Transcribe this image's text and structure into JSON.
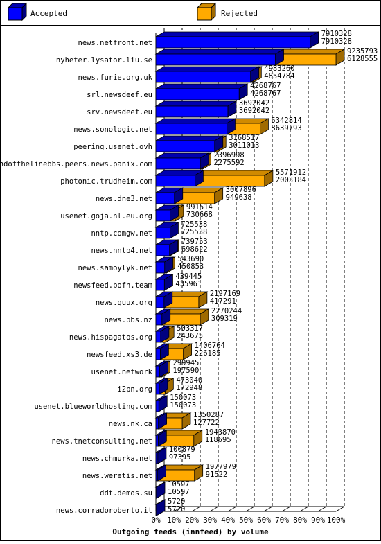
{
  "legend": {
    "accepted": "Accepted",
    "rejected": "Rejected"
  },
  "colors": {
    "accepted": "#0000ff",
    "rejected": "#ffaa00",
    "grid": "#000000",
    "border": "#000000"
  },
  "chart_data": {
    "type": "bar",
    "orientation": "horizontal",
    "stacked": true,
    "title": "Outgoing feeds (innfeed) by volume",
    "categories": [
      "news.netfront.net",
      "nyheter.lysator.liu.se",
      "news.furie.org.uk",
      "srl.newsdeef.eu",
      "srv.newsdeef.eu",
      "news.sonologic.net",
      "peering.usenet.ovh",
      "endofthelinebbs.peers.news.panix.com",
      "photonic.trudheim.com",
      "news.dne3.net",
      "usenet.goja.nl.eu.org",
      "nntp.comgw.net",
      "news.nntp4.net",
      "news.samoylyk.net",
      "newsfeed.bofh.team",
      "news.quux.org",
      "news.bbs.nz",
      "news.hispagatos.org",
      "newsfeed.xs3.de",
      "usenet.network",
      "i2pn.org",
      "usenet.blueworldhosting.com",
      "news.nk.ca",
      "news.tnetconsulting.net",
      "news.chmurka.net",
      "news.weretis.net",
      "ddt.demos.su",
      "news.corradoroberto.it"
    ],
    "offered": [
      7910328,
      9235793,
      4983260,
      4268767,
      3692042,
      5342814,
      3168517,
      2396998,
      5571912,
      3007896,
      991514,
      725538,
      739753,
      543690,
      439445,
      2197169,
      2270244,
      503317,
      1406764,
      299945,
      473040,
      150073,
      1350287,
      1943870,
      100879,
      1977979,
      10597,
      5720
    ],
    "accepted": [
      7910328,
      6128555,
      4854784,
      4268767,
      3692042,
      3639793,
      3011013,
      2275592,
      2003184,
      949638,
      730668,
      725538,
      698622,
      450853,
      435961,
      417291,
      309319,
      243675,
      226185,
      197590,
      172948,
      150073,
      127722,
      118695,
      97395,
      91522,
      10597,
      5720
    ],
    "series": [
      {
        "name": "Accepted",
        "color": "#0000ff"
      },
      {
        "name": "Rejected",
        "color": "#ffaa00"
      }
    ],
    "xaxis": {
      "ticks": [
        "0%",
        "10%",
        "20%",
        "30%",
        "40%",
        "50%",
        "60%",
        "70%",
        "80%",
        "90%",
        "100%"
      ],
      "range": [
        0,
        9235793
      ]
    },
    "grid": true,
    "legend_position": "top"
  }
}
